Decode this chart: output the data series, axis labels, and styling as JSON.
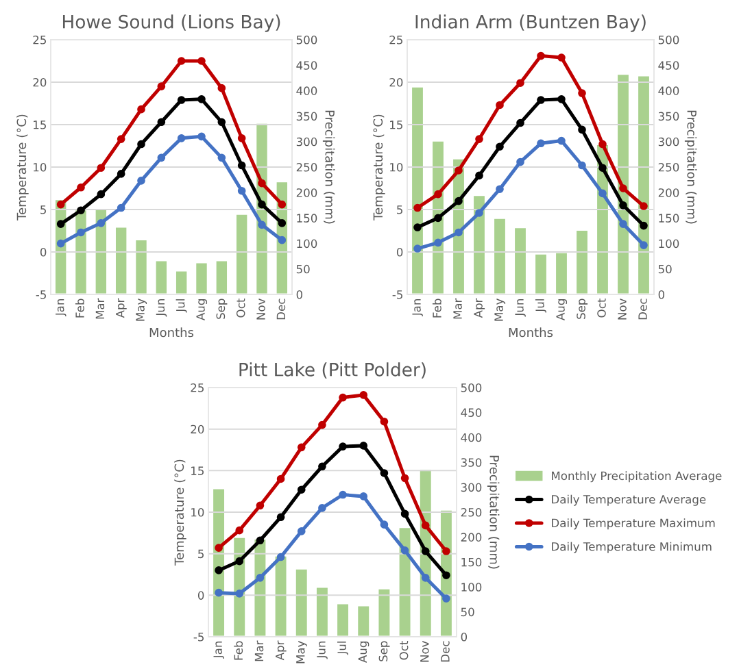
{
  "chart_data": [
    {
      "type": "bar",
      "title": "Howe Sound (Lions Bay)",
      "xlabel": "Months",
      "ylabel": "Temperature (°C)",
      "y2label": "Precipitation (mm)",
      "categories": [
        "Jan",
        "Feb",
        "Mar",
        "Apr",
        "May",
        "Jun",
        "Jul",
        "Aug",
        "Sep",
        "Oct",
        "Nov",
        "Dec"
      ],
      "ylim": [
        -5,
        25
      ],
      "yticks": [
        -5,
        0,
        5,
        10,
        15,
        20,
        25
      ],
      "y2lim": [
        0,
        500
      ],
      "y2ticks": [
        0,
        50,
        100,
        150,
        200,
        250,
        300,
        350,
        400,
        450,
        500
      ],
      "grid": "y",
      "marker": "circle",
      "series": [
        {
          "axis": "y2",
          "color": "#a9d18e",
          "values": [
            187,
            167,
            168,
            133,
            108,
            67,
            47,
            63,
            67,
            158,
            337,
            222
          ]
        },
        {
          "type": "line",
          "axis": "y",
          "color": "#000000",
          "values": [
            3.3,
            4.9,
            6.8,
            9.2,
            12.7,
            15.3,
            17.9,
            18.0,
            15.3,
            10.2,
            5.6,
            3.4
          ]
        },
        {
          "type": "line",
          "axis": "y",
          "color": "#c00000",
          "values": [
            5.6,
            7.6,
            9.9,
            13.3,
            16.8,
            19.5,
            22.5,
            22.5,
            19.3,
            13.4,
            8.1,
            5.6
          ]
        },
        {
          "type": "line",
          "axis": "y",
          "color": "#4472c4",
          "values": [
            1.0,
            2.3,
            3.4,
            5.2,
            8.4,
            11.1,
            13.4,
            13.6,
            11.1,
            7.2,
            3.2,
            1.4
          ]
        }
      ]
    },
    {
      "type": "bar",
      "title": "Indian Arm (Buntzen Bay)",
      "xlabel": "Months",
      "ylabel": "Temperature (°C)",
      "y2label": "Precipitation (mm)",
      "categories": [
        "Jan",
        "Feb",
        "Mar",
        "Apr",
        "May",
        "Jun",
        "Jul",
        "Aug",
        "Sep",
        "Oct",
        "Nov",
        "Dec"
      ],
      "ylim": [
        -5,
        25
      ],
      "yticks": [
        -5,
        0,
        5,
        10,
        15,
        20,
        25
      ],
      "y2lim": [
        0,
        500
      ],
      "y2ticks": [
        0,
        50,
        100,
        150,
        200,
        250,
        300,
        350,
        400,
        450,
        500
      ],
      "grid": "y",
      "marker": "circle",
      "series": [
        {
          "axis": "y2",
          "color": "#a9d18e",
          "values": [
            408,
            302,
            267,
            195,
            150,
            132,
            80,
            83,
            127,
            295,
            433,
            430
          ]
        },
        {
          "type": "line",
          "axis": "y",
          "color": "#000000",
          "values": [
            2.9,
            4.0,
            6.0,
            9.0,
            12.4,
            15.2,
            17.9,
            18.0,
            14.4,
            9.9,
            5.5,
            3.1
          ]
        },
        {
          "type": "line",
          "axis": "y",
          "color": "#c00000",
          "values": [
            5.2,
            6.8,
            9.6,
            13.3,
            17.3,
            19.9,
            23.1,
            22.9,
            18.7,
            12.7,
            7.5,
            5.4
          ]
        },
        {
          "type": "line",
          "axis": "y",
          "color": "#4472c4",
          "values": [
            0.4,
            1.1,
            2.3,
            4.6,
            7.4,
            10.6,
            12.8,
            13.1,
            10.2,
            6.9,
            3.3,
            0.8
          ]
        }
      ]
    },
    {
      "type": "bar",
      "title": "Pitt Lake (Pitt Polder)",
      "ylabel": "Temperature (°C)",
      "y2label": "Precipitation (mm)",
      "categories": [
        "Jan",
        "Feb",
        "Mar",
        "Apr",
        "May",
        "Jun",
        "Jul",
        "Aug",
        "Sep",
        "Oct",
        "Nov",
        "Dec"
      ],
      "ylim": [
        -5,
        25
      ],
      "yticks": [
        -5,
        0,
        5,
        10,
        15,
        20,
        25
      ],
      "y2lim": [
        0,
        500
      ],
      "y2ticks": [
        0,
        50,
        100,
        150,
        200,
        250,
        300,
        350,
        400,
        450,
        500
      ],
      "grid": "y",
      "marker": "circle",
      "legend": "right",
      "series": [
        {
          "axis": "y2",
          "name": "Monthly Precipitation Average",
          "color": "#a9d18e",
          "values": [
            298,
            200,
            197,
            163,
            137,
            100,
            67,
            63,
            97,
            220,
            337,
            255
          ]
        },
        {
          "type": "line",
          "axis": "y",
          "name": "Daily Temperature Average",
          "color": "#000000",
          "values": [
            3.0,
            4.1,
            6.6,
            9.4,
            12.7,
            15.5,
            17.9,
            18.0,
            14.7,
            9.8,
            5.3,
            2.4
          ]
        },
        {
          "type": "line",
          "axis": "y",
          "name": "Daily Temperature Maximum",
          "color": "#c00000",
          "values": [
            5.7,
            7.8,
            10.8,
            14.0,
            17.8,
            20.5,
            23.8,
            24.1,
            20.9,
            14.1,
            8.4,
            5.3
          ]
        },
        {
          "type": "line",
          "axis": "y",
          "name": "Daily Temperature Minimum",
          "color": "#4472c4",
          "values": [
            0.3,
            0.2,
            2.1,
            4.6,
            7.7,
            10.5,
            12.1,
            11.9,
            8.5,
            5.4,
            2.1,
            -0.4
          ]
        }
      ]
    }
  ]
}
